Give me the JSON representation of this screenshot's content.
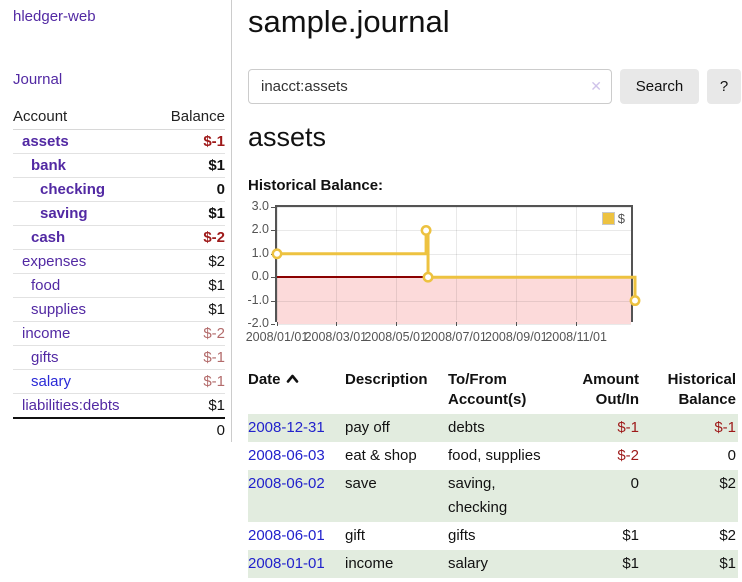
{
  "app": {
    "brand": "hledger-web",
    "nav": {
      "journal": "Journal"
    }
  },
  "header": {
    "title": "sample.journal"
  },
  "search": {
    "value": "inacct:assets",
    "clear_icon": "✕",
    "search_button": "Search",
    "help_button": "?"
  },
  "sidebar": {
    "headers": {
      "account": "Account",
      "balance": "Balance"
    },
    "accounts": [
      {
        "name": "assets",
        "depth": 1,
        "bold": true,
        "balance": "$-1",
        "neg": "strong"
      },
      {
        "name": "bank",
        "depth": 2,
        "bold": true,
        "balance": "$1"
      },
      {
        "name": "checking",
        "depth": 3,
        "bold": true,
        "balance": "0"
      },
      {
        "name": "saving",
        "depth": 3,
        "bold": true,
        "balance": "$1"
      },
      {
        "name": "cash",
        "depth": 2,
        "bold": true,
        "balance": "$-2",
        "neg": "strong"
      },
      {
        "name": "expenses",
        "depth": 1,
        "bold": false,
        "balance": "$2"
      },
      {
        "name": "food",
        "depth": 2,
        "bold": false,
        "balance": "$1"
      },
      {
        "name": "supplies",
        "depth": 2,
        "bold": false,
        "balance": "$1"
      },
      {
        "name": "income",
        "depth": 1,
        "bold": false,
        "balance": "$-2",
        "neg": "muted"
      },
      {
        "name": "gifts",
        "depth": 2,
        "bold": false,
        "balance": "$-1",
        "neg": "muted"
      },
      {
        "name": "salary",
        "depth": 2,
        "bold": false,
        "balance": "$-1",
        "neg": "muted",
        "link_color": "blue"
      },
      {
        "name": "liabilities:debts",
        "depth": 1,
        "bold": false,
        "balance": "$1"
      }
    ],
    "total": "0"
  },
  "account_page": {
    "heading": "assets",
    "chart_title": "Historical Balance:"
  },
  "chart_data": {
    "type": "line",
    "step": true,
    "series": [
      {
        "name": "$",
        "points": [
          [
            "2008/01/01",
            1.0
          ],
          [
            "2008/06/01",
            2.0
          ],
          [
            "2008/06/03",
            0.0
          ],
          [
            "2008/12/31",
            -1.0
          ]
        ]
      }
    ],
    "yticks": [
      "3.0",
      "2.0",
      "1.0",
      "0.0",
      "-1.0",
      "-2.0"
    ],
    "ylim": [
      -2.0,
      3.0
    ],
    "xticks": [
      "2008/01/01",
      "2008/03/01",
      "2008/05/01",
      "2008/07/01",
      "2008/09/01",
      "2008/11/01"
    ],
    "xlim_days": [
      0,
      365
    ],
    "legend": {
      "label": "$",
      "position": "top-right"
    },
    "grid": true,
    "line_color": "#edc240",
    "negative_region_color": "#fcdada",
    "zero_line_color": "#8b0000"
  },
  "register": {
    "headers": {
      "date": "Date",
      "description": "Description",
      "accounts": "To/From\nAccount(s)",
      "amount": "Amount\nOut/In",
      "balance": "Historical\nBalance"
    },
    "rows": [
      {
        "date": "2008-12-31",
        "description": "pay off",
        "accounts": "debts",
        "amount": "$-1",
        "balance": "$-1"
      },
      {
        "date": "2008-06-03",
        "description": "eat & shop",
        "accounts": "food, supplies",
        "amount": "$-2",
        "balance": "0"
      },
      {
        "date": "2008-06-02",
        "description": "save",
        "accounts": "saving,\nchecking",
        "amount": "0",
        "balance": "$2"
      },
      {
        "date": "2008-06-01",
        "description": "gift",
        "accounts": "gifts",
        "amount": "$1",
        "balance": "$2"
      },
      {
        "date": "2008-01-01",
        "description": "income",
        "accounts": "salary",
        "amount": "$1",
        "balance": "$1"
      }
    ]
  },
  "colors": {
    "accent_purple": "#5229a3",
    "link_blue": "#2222cc",
    "negative_strong": "#9e1919",
    "negative_muted": "#b36b6b",
    "row_stripe_green": "#e2ecdf",
    "chart_gold": "#edc240",
    "chart_negative_fill": "#fcdada",
    "chart_zero_line": "#8b0000"
  }
}
